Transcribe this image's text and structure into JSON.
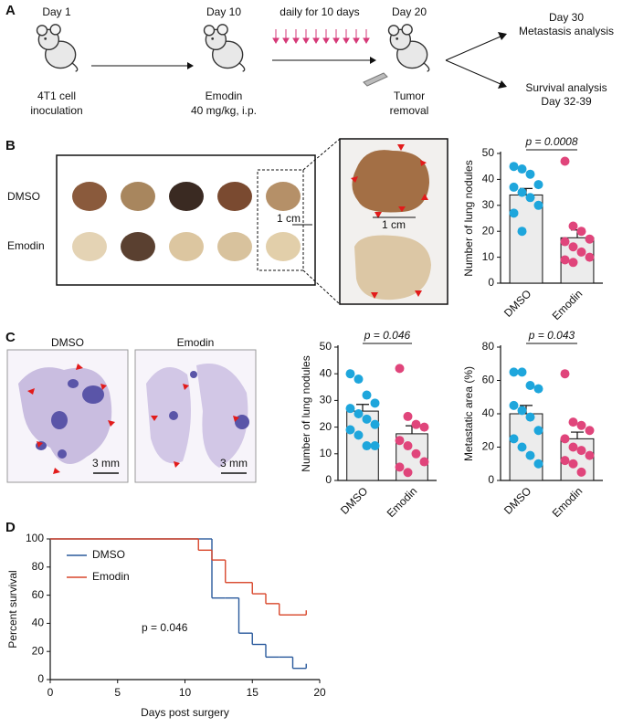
{
  "panel_labels": [
    "A",
    "B",
    "C",
    "D"
  ],
  "timeline": {
    "day1": "Day 1",
    "day1_note": [
      "4T1 cell",
      "inoculation"
    ],
    "day10": "Day 10",
    "day10_note": [
      "Emodin",
      "40 mg/kg, i.p."
    ],
    "dosing": "daily for 10 days",
    "day20": "Day 20",
    "day20_note": [
      "Tumor",
      "removal"
    ],
    "day30": "Day 30",
    "metastasis": "Metastasis analysis",
    "survival": "Survival analysis",
    "day32": "Day 32-39"
  },
  "lung_photos": {
    "rows": [
      "DMSO",
      "Emodin"
    ],
    "scale": "1 cm",
    "zoom_scale": "1 cm"
  },
  "histology": {
    "titles": [
      "DMSO",
      "Emodin"
    ],
    "scale": "3 mm"
  },
  "chart_data": [
    {
      "type": "bar",
      "ylabel": "Number of lung nodules",
      "categories": [
        "DMSO",
        "Emodin"
      ],
      "values": [
        34,
        17.5
      ],
      "errors": [
        2.5,
        3
      ],
      "points": [
        [
          45,
          44,
          42,
          38,
          37,
          35,
          33,
          30,
          27,
          20
        ],
        [
          47,
          22,
          20,
          17,
          16,
          14,
          12,
          10,
          9,
          8
        ]
      ],
      "colors": [
        "#1ea6dc",
        "#e0457b"
      ],
      "annotation": "p = 0.0008",
      "ylim": [
        0,
        50
      ],
      "yticks": [
        0,
        10,
        20,
        30,
        40,
        50
      ]
    },
    {
      "type": "bar",
      "ylabel": "Number of lung nodules",
      "categories": [
        "DMSO",
        "Emodin"
      ],
      "values": [
        26,
        17.5
      ],
      "errors": [
        2.5,
        3
      ],
      "points": [
        [
          40,
          38,
          32,
          29,
          27,
          25,
          23,
          21,
          19,
          17,
          13,
          13
        ],
        [
          42,
          24,
          21,
          20,
          15,
          13,
          10,
          7,
          5,
          3
        ]
      ],
      "colors": [
        "#1ea6dc",
        "#e0457b"
      ],
      "annotation": "p = 0.046",
      "ylim": [
        0,
        50
      ],
      "yticks": [
        0,
        10,
        20,
        30,
        40,
        50
      ]
    },
    {
      "type": "bar",
      "ylabel": "Metastatic area (%)",
      "categories": [
        "DMSO",
        "Emodin"
      ],
      "values": [
        40,
        25
      ],
      "errors": [
        5,
        4
      ],
      "points": [
        [
          65,
          65,
          57,
          55,
          45,
          42,
          38,
          30,
          25,
          20,
          15,
          10
        ],
        [
          64,
          35,
          33,
          30,
          25,
          20,
          18,
          15,
          12,
          10,
          5
        ]
      ],
      "colors": [
        "#1ea6dc",
        "#e0457b"
      ],
      "annotation": "p = 0.043",
      "ylim": [
        0,
        80
      ],
      "yticks": [
        0,
        20,
        40,
        60,
        80
      ]
    },
    {
      "type": "line",
      "step": true,
      "xlabel": "Days post surgery",
      "ylabel": "Percent survival",
      "annotation": "p = 0.046",
      "x": [
        0,
        11,
        12,
        13,
        14,
        15,
        16,
        17,
        18,
        19
      ],
      "series": [
        {
          "name": "DMSO",
          "color": "#2a5a9c",
          "values": [
            100,
            100,
            58,
            58,
            33,
            25,
            16,
            16,
            8,
            8
          ]
        },
        {
          "name": "Emodin",
          "color": "#d9472b",
          "values": [
            100,
            92,
            85,
            69,
            69,
            61,
            54,
            46,
            46,
            46
          ]
        }
      ],
      "xlim": [
        0,
        20
      ],
      "xticks": [
        0,
        5,
        10,
        15,
        20
      ],
      "ylim": [
        0,
        100
      ],
      "yticks": [
        0,
        20,
        40,
        60,
        80,
        100
      ]
    }
  ]
}
